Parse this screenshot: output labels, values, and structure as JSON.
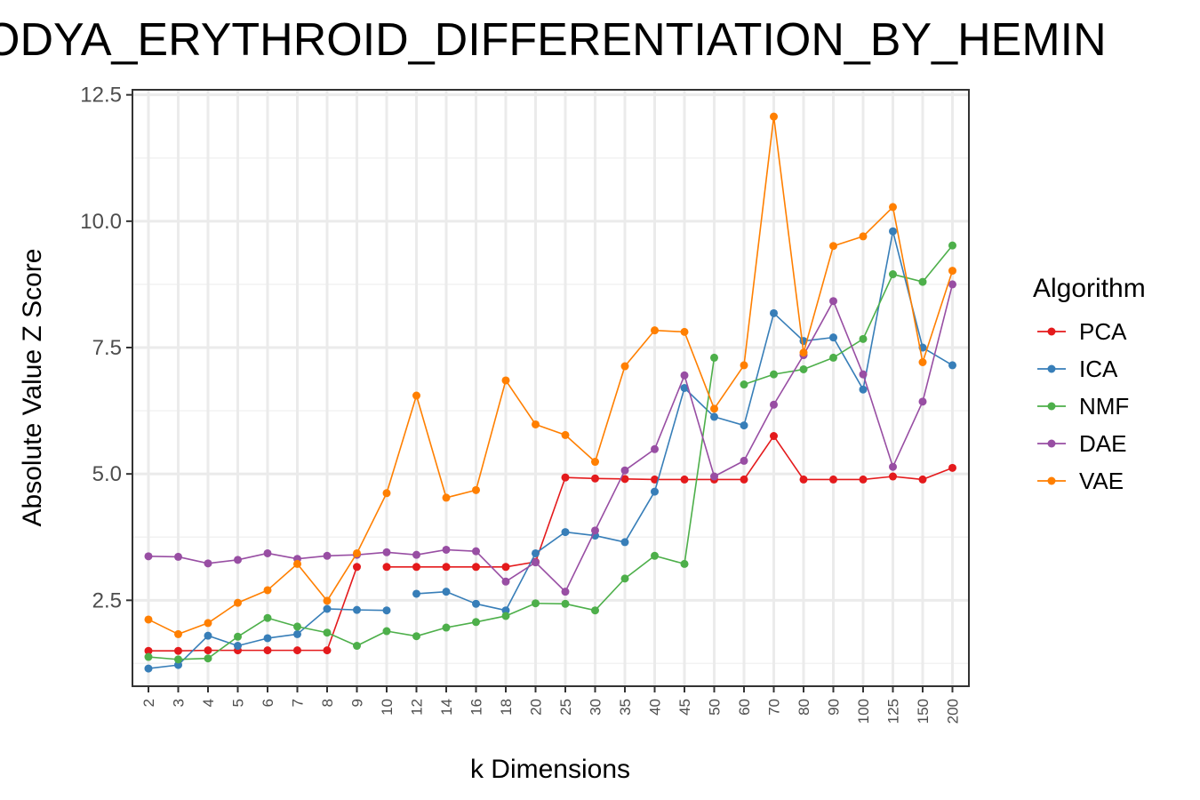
{
  "chart_data": {
    "type": "line",
    "title": "ODYA_ERYTHROID_DIFFERENTIATION_BY_HEMIN",
    "xlabel": "k Dimensions",
    "ylabel": "Absolute Value Z Score",
    "categories": [
      "2",
      "3",
      "4",
      "5",
      "6",
      "7",
      "8",
      "9",
      "10",
      "12",
      "14",
      "16",
      "18",
      "20",
      "25",
      "30",
      "35",
      "40",
      "45",
      "50",
      "60",
      "70",
      "80",
      "90",
      "100",
      "125",
      "150",
      "200"
    ],
    "ylim": [
      0.8,
      12.6
    ],
    "yticks": [
      "2.5",
      "5.0",
      "7.5",
      "10.0",
      "12.5"
    ],
    "grid": true,
    "legend": {
      "title": "Algorithm",
      "position": "right"
    },
    "series": [
      {
        "name": "PCA",
        "color": "#e41a1c",
        "values": [
          1.5,
          1.5,
          1.51,
          1.51,
          1.51,
          1.51,
          1.51,
          3.16,
          3.16,
          3.16,
          3.16,
          3.16,
          3.16,
          3.26,
          4.93,
          4.91,
          4.9,
          4.89,
          4.89,
          4.89,
          4.89,
          5.75,
          4.89,
          4.89,
          4.89,
          4.95,
          4.89,
          5.12
        ],
        "gaps": [
          7
        ]
      },
      {
        "name": "ICA",
        "color": "#377eb8",
        "values": [
          1.15,
          1.22,
          1.8,
          1.6,
          1.75,
          1.83,
          2.33,
          2.31,
          2.3,
          2.63,
          2.67,
          2.43,
          2.3,
          3.43,
          3.85,
          3.78,
          3.65,
          4.65,
          6.7,
          6.13,
          5.96,
          8.18,
          7.63,
          7.7,
          6.67,
          9.8,
          7.5,
          7.15
        ],
        "gaps": [
          8
        ]
      },
      {
        "name": "NMF",
        "color": "#4daf4a",
        "values": [
          1.38,
          1.33,
          1.35,
          1.78,
          2.15,
          1.98,
          1.86,
          1.6,
          1.89,
          1.79,
          1.96,
          2.07,
          2.19,
          2.44,
          2.43,
          2.3,
          2.93,
          3.38,
          3.22,
          7.3,
          6.77,
          6.97,
          7.07,
          7.3,
          7.67,
          8.95,
          8.8,
          9.52
        ],
        "gaps": [
          19
        ]
      },
      {
        "name": "DAE",
        "color": "#984ea3",
        "values": [
          3.37,
          3.36,
          3.23,
          3.3,
          3.43,
          3.32,
          3.38,
          3.4,
          3.45,
          3.4,
          3.5,
          3.47,
          2.87,
          3.25,
          2.67,
          3.88,
          5.07,
          5.49,
          6.95,
          4.95,
          5.26,
          6.37,
          7.35,
          8.42,
          6.97,
          5.14,
          6.43,
          8.75
        ],
        "gaps": []
      },
      {
        "name": "VAE",
        "color": "#ff7f00",
        "values": [
          2.12,
          1.83,
          2.05,
          2.45,
          2.7,
          3.22,
          2.49,
          3.43,
          4.62,
          6.55,
          4.53,
          4.68,
          6.85,
          5.98,
          5.77,
          5.24,
          7.13,
          7.84,
          7.81,
          6.29,
          7.15,
          12.07,
          7.4,
          9.51,
          9.7,
          10.28,
          7.21,
          9.02
        ],
        "gaps": []
      }
    ]
  }
}
